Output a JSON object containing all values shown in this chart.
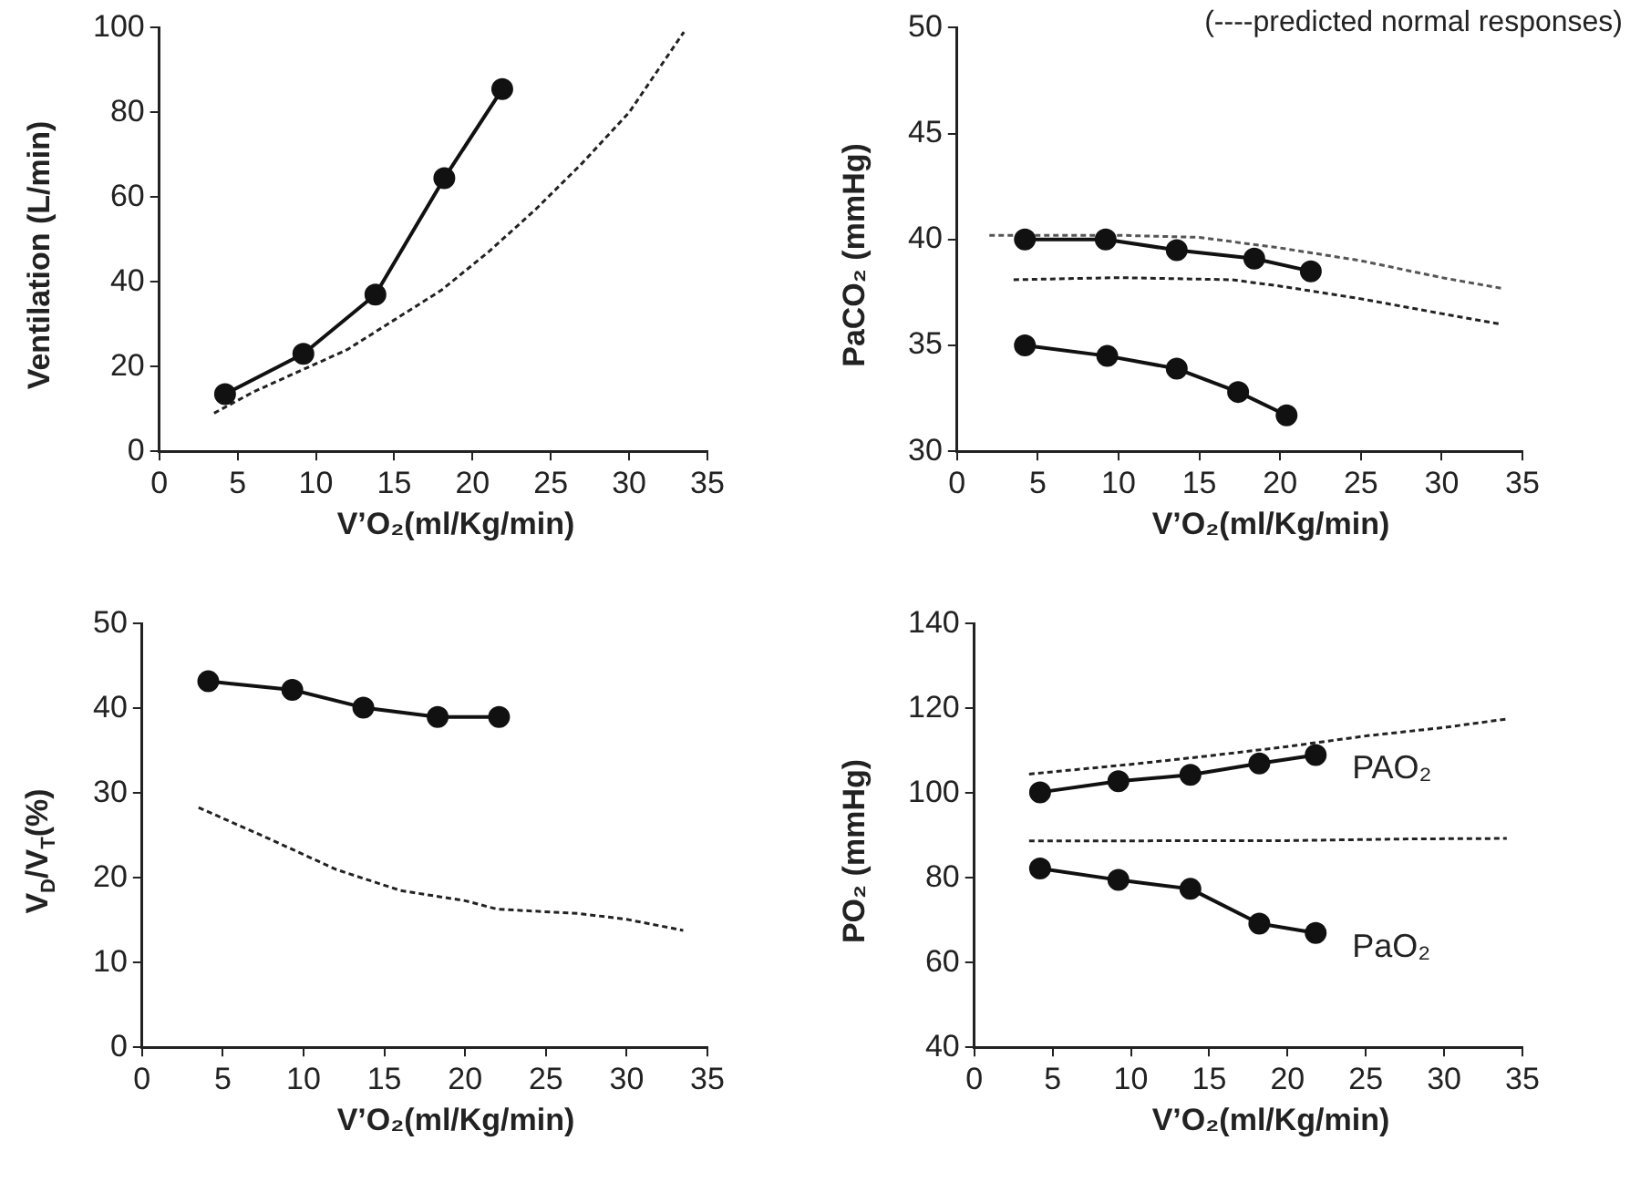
{
  "chart_data": [
    {
      "type": "line",
      "xlabel": "V’O₂(ml/Kg/min)",
      "ylabel": "Ventilation (L/min)",
      "xlim": [
        0,
        35
      ],
      "xticks": [
        0,
        5,
        10,
        15,
        20,
        25,
        30,
        35
      ],
      "ylim": [
        0,
        100
      ],
      "yticks": [
        0,
        20,
        40,
        60,
        80,
        100
      ],
      "grid": false,
      "legend": false,
      "series": [
        {
          "color": "#111111",
          "marker": "circle",
          "line_style": "solid",
          "x": [
            4.2,
            9.2,
            13.8,
            18.2,
            21.9
          ],
          "values": [
            13.5,
            23,
            37,
            64.5,
            85.5
          ]
        },
        {
          "color": "#222222",
          "marker": "none",
          "line_style": "dashed",
          "x": [
            3.5,
            6,
            9,
            12,
            15,
            18,
            21,
            24,
            27,
            30,
            33.5
          ],
          "values": [
            9,
            14,
            19,
            24,
            31,
            38,
            47,
            57,
            68,
            80,
            99
          ]
        }
      ]
    },
    {
      "type": "line",
      "xlabel": "V’O₂(ml/Kg/min)",
      "ylabel": "PaCO₂ (mmHg)",
      "xlim": [
        0,
        35
      ],
      "xticks": [
        0,
        5,
        10,
        15,
        20,
        25,
        30,
        35
      ],
      "ylim": [
        30,
        50
      ],
      "yticks": [
        30,
        35,
        40,
        45,
        50
      ],
      "grid": false,
      "legend": false,
      "annotations": [
        "(----predicted normal responses)"
      ],
      "series": [
        {
          "color": "#111111",
          "marker": "circle",
          "line_style": "solid",
          "x": [
            4.2,
            9.2,
            13.6,
            18.4,
            21.9
          ],
          "values": [
            40,
            40,
            39.5,
            39.1,
            38.5
          ]
        },
        {
          "color": "#111111",
          "marker": "circle",
          "line_style": "solid",
          "x": [
            4.2,
            9.3,
            13.6,
            17.4,
            20.4
          ],
          "values": [
            35,
            34.5,
            33.9,
            32.8,
            31.7
          ]
        },
        {
          "color": "#555555",
          "marker": "none",
          "line_style": "dashed",
          "x": [
            2,
            10,
            15,
            20,
            25,
            30,
            33.7
          ],
          "values": [
            40.2,
            40.2,
            40.1,
            39.6,
            39,
            38.2,
            37.7
          ]
        },
        {
          "color": "#222222",
          "marker": "none",
          "line_style": "dashed",
          "x": [
            3.5,
            10,
            17,
            20,
            25,
            30,
            33.7
          ],
          "values": [
            38.1,
            38.2,
            38.1,
            37.8,
            37.2,
            36.5,
            36
          ]
        }
      ]
    },
    {
      "type": "line",
      "xlabel": "V’O₂(ml/Kg/min)",
      "ylabel": "V$_{D}$/V$_{T}$(%)",
      "xlim": [
        0,
        35
      ],
      "xticks": [
        0,
        5,
        10,
        15,
        20,
        25,
        30,
        35
      ],
      "ylim": [
        0,
        50
      ],
      "yticks": [
        0,
        10,
        20,
        30,
        40,
        50
      ],
      "grid": false,
      "legend": false,
      "series": [
        {
          "color": "#111111",
          "marker": "circle",
          "line_style": "solid",
          "x": [
            4.1,
            9.3,
            13.7,
            18.3,
            22.1
          ],
          "values": [
            43.2,
            42.2,
            40.1,
            39,
            39
          ]
        },
        {
          "color": "#222222",
          "marker": "none",
          "line_style": "dashed",
          "x": [
            3.5,
            8,
            12,
            16,
            20,
            22,
            27,
            30,
            33.5
          ],
          "values": [
            28.3,
            24.5,
            21,
            18.5,
            17.3,
            16.3,
            15.8,
            15.1,
            13.8
          ]
        }
      ]
    },
    {
      "type": "line",
      "xlabel": "V’O₂(ml/Kg/min)",
      "ylabel": "PO₂ (mmHg)",
      "xlim": [
        0,
        35
      ],
      "xticks": [
        0,
        5,
        10,
        15,
        20,
        25,
        30,
        35
      ],
      "ylim": [
        40,
        140
      ],
      "yticks": [
        40,
        60,
        80,
        100,
        120,
        140
      ],
      "grid": false,
      "legend": false,
      "series": [
        {
          "name": "PAO₂",
          "color": "#111111",
          "marker": "circle",
          "line_style": "solid",
          "x": [
            4.2,
            9.2,
            13.8,
            18.2,
            21.8
          ],
          "values": [
            100.2,
            102.8,
            104.3,
            107,
            109
          ]
        },
        {
          "name": "PaO₂",
          "color": "#111111",
          "marker": "circle",
          "line_style": "solid",
          "x": [
            4.2,
            9.2,
            13.8,
            18.2,
            21.8
          ],
          "values": [
            82.2,
            79.5,
            77.4,
            69.2,
            67
          ]
        },
        {
          "color": "#222222",
          "marker": "none",
          "line_style": "dashed",
          "x": [
            3.5,
            10,
            15,
            20,
            25,
            30,
            34
          ],
          "values": [
            104.5,
            106.8,
            108.8,
            111,
            113.5,
            115.5,
            117.5
          ]
        },
        {
          "color": "#222222",
          "marker": "none",
          "line_style": "dashed",
          "x": [
            3.5,
            20,
            28,
            34
          ],
          "values": [
            88.7,
            88.8,
            89.2,
            89.3
          ]
        }
      ]
    }
  ]
}
